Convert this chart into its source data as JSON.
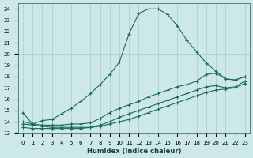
{
  "xlabel": "Humidex (Indice chaleur)",
  "xlim": [
    -0.5,
    23.5
  ],
  "ylim": [
    13,
    24.5
  ],
  "bg_color": "#cce8e8",
  "grid_color": "#aacccc",
  "line_color": "#1a6b5a",
  "line1_x": [
    0,
    1,
    2,
    3,
    4,
    5,
    6,
    7,
    8,
    9,
    10,
    11,
    12,
    13,
    14,
    15,
    16,
    17,
    18,
    19,
    20,
    21,
    22,
    23
  ],
  "line1_y": [
    14.8,
    13.8,
    14.1,
    14.2,
    14.7,
    15.2,
    15.8,
    16.5,
    17.3,
    18.2,
    19.3,
    21.8,
    23.6,
    24.0,
    24.0,
    23.5,
    22.5,
    21.2,
    20.2,
    19.2,
    18.5,
    17.8,
    17.7,
    18.0
  ],
  "line2_x": [
    0,
    1,
    2,
    3,
    4,
    5,
    6,
    7,
    8,
    9,
    10,
    11,
    12,
    13,
    14,
    15,
    16,
    17,
    18,
    19,
    20,
    21,
    22,
    23
  ],
  "line2_y": [
    14.0,
    13.8,
    13.7,
    13.7,
    13.7,
    13.8,
    13.8,
    13.9,
    14.3,
    14.8,
    15.2,
    15.5,
    15.8,
    16.2,
    16.5,
    16.8,
    17.1,
    17.3,
    17.6,
    18.2,
    18.3,
    17.8,
    17.7,
    18.0
  ],
  "line3_x": [
    0,
    1,
    2,
    3,
    4,
    5,
    6,
    7,
    8,
    9,
    10,
    11,
    12,
    13,
    14,
    15,
    16,
    17,
    18,
    19,
    20,
    21,
    22,
    23
  ],
  "line3_y": [
    13.8,
    13.7,
    13.6,
    13.5,
    13.5,
    13.5,
    13.5,
    13.5,
    13.7,
    14.0,
    14.4,
    14.7,
    15.0,
    15.3,
    15.6,
    15.9,
    16.2,
    16.5,
    16.8,
    17.1,
    17.2,
    17.0,
    17.1,
    17.6
  ],
  "line4_x": [
    0,
    1,
    2,
    3,
    4,
    5,
    6,
    7,
    8,
    9,
    10,
    11,
    12,
    13,
    14,
    15,
    16,
    17,
    18,
    19,
    20,
    21,
    22,
    23
  ],
  "line4_y": [
    13.5,
    13.4,
    13.4,
    13.4,
    13.4,
    13.4,
    13.4,
    13.5,
    13.6,
    13.8,
    14.0,
    14.2,
    14.5,
    14.8,
    15.1,
    15.4,
    15.7,
    16.0,
    16.3,
    16.6,
    16.8,
    16.9,
    17.0,
    17.4
  ],
  "yticks": [
    13,
    14,
    15,
    16,
    17,
    18,
    19,
    20,
    21,
    22,
    23,
    24
  ],
  "xticks": [
    0,
    1,
    2,
    3,
    4,
    5,
    6,
    7,
    8,
    9,
    10,
    11,
    12,
    13,
    14,
    15,
    16,
    17,
    18,
    19,
    20,
    21,
    22,
    23
  ]
}
